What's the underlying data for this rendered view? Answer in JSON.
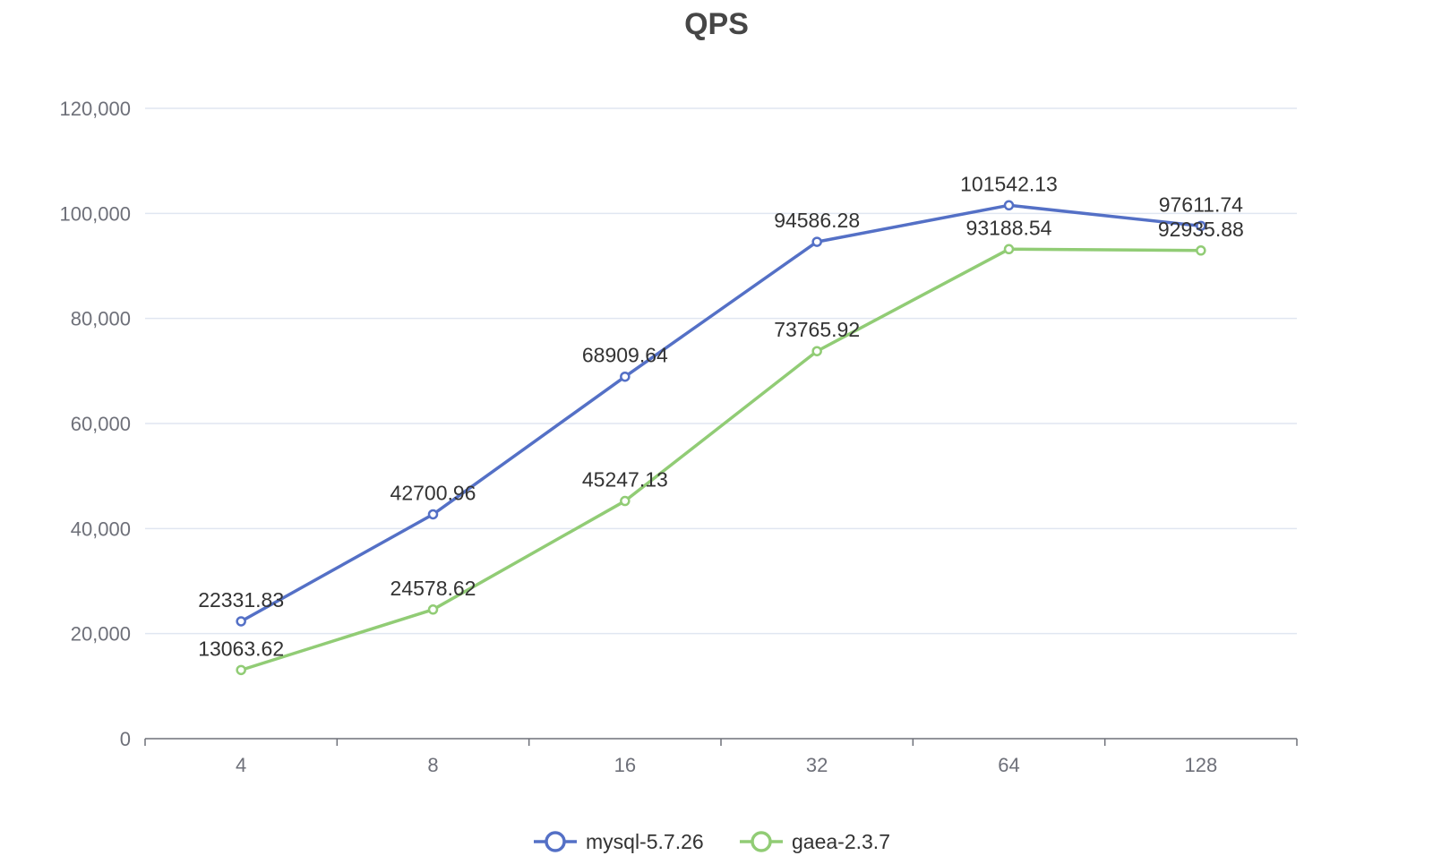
{
  "chart_data": {
    "type": "line",
    "title": "QPS",
    "xlabel": "",
    "ylabel": "",
    "categories": [
      "4",
      "8",
      "16",
      "32",
      "64",
      "128"
    ],
    "ylim": [
      0,
      120000
    ],
    "y_ticks": [
      0,
      20000,
      40000,
      60000,
      80000,
      100000,
      120000
    ],
    "y_tick_labels": [
      "0",
      "20,000",
      "40,000",
      "60,000",
      "80,000",
      "100,000",
      "120,000"
    ],
    "grid": true,
    "legend_position": "bottom-center",
    "series": [
      {
        "name": "mysql-5.7.26",
        "color": "#5470c6",
        "values": [
          22331.83,
          42700.96,
          68909.64,
          94586.28,
          101542.13,
          97611.74
        ],
        "labels": [
          "22331.83",
          "42700.96",
          "68909.64",
          "94586.28",
          "101542.13",
          "97611.74"
        ]
      },
      {
        "name": "gaea-2.3.7",
        "color": "#91cc75",
        "values": [
          13063.62,
          24578.62,
          45247.13,
          73765.92,
          93188.54,
          92935.88
        ],
        "labels": [
          "13063.62",
          "24578.62",
          "45247.13",
          "73765.92",
          "93188.54",
          "92935.88"
        ]
      }
    ]
  }
}
